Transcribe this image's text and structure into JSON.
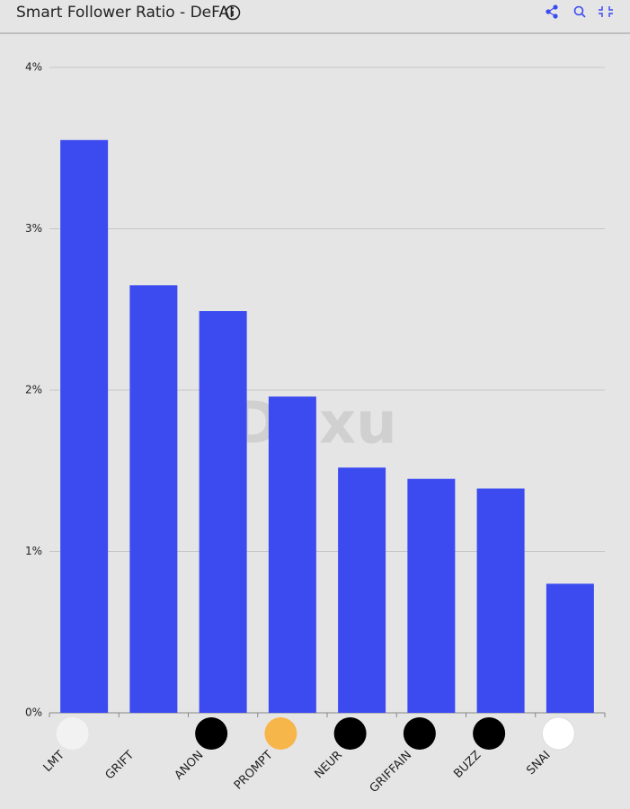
{
  "chart_data": {
    "type": "bar",
    "title": "Smart Follower Ratio - DeFAI",
    "watermark": "Dexu",
    "categories": [
      "LMT",
      "GRIFT",
      "ANON",
      "PROMPT",
      "NEUR",
      "GRIFFAIN",
      "BUZZ",
      "SNAI"
    ],
    "values": [
      3.55,
      2.65,
      2.49,
      1.96,
      1.52,
      1.45,
      1.39,
      0.8
    ],
    "color": "#3b4bf0",
    "ylim": [
      0,
      4
    ],
    "yticks": [
      {
        "value": 0,
        "label": "0%"
      },
      {
        "value": 1,
        "label": "1%"
      },
      {
        "value": 2,
        "label": "2%"
      },
      {
        "value": 3,
        "label": "3%"
      },
      {
        "value": 4,
        "label": "4%"
      }
    ],
    "grid": true
  }
}
